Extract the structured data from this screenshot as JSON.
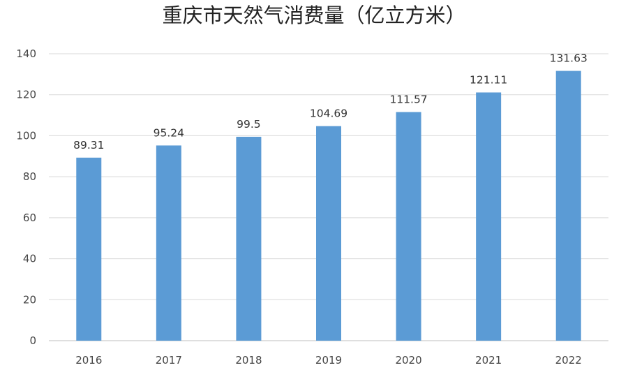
{
  "chart_data": {
    "type": "bar",
    "title": "重庆市天然气消费量（亿立方米）",
    "xlabel": "",
    "ylabel": "",
    "categories": [
      "2016",
      "2017",
      "2018",
      "2019",
      "2020",
      "2021",
      "2022"
    ],
    "values": [
      89.31,
      95.24,
      99.5,
      104.69,
      111.57,
      121.11,
      131.63
    ],
    "value_labels": [
      "89.31",
      "95.24",
      "99.5",
      "104.69",
      "111.57",
      "121.11",
      "131.63"
    ],
    "ylim": [
      0,
      140
    ],
    "yticks": [
      0,
      20,
      40,
      60,
      80,
      100,
      120,
      140
    ],
    "grid": true,
    "legend": "none",
    "colors": {
      "bar": "#5b9bd5"
    }
  }
}
